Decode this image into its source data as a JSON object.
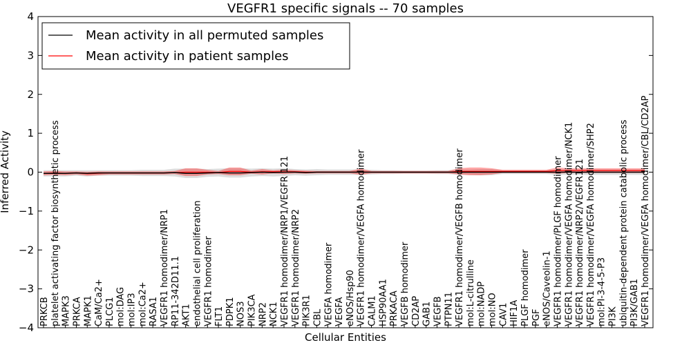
{
  "chart_data": {
    "type": "line",
    "title": "VEGFR1 specific signals -- 70 samples",
    "xlabel": "Cellular Entities",
    "ylabel": "Inferred Activity",
    "ylim": [
      -4,
      4
    ],
    "yticks": [
      -4,
      -3,
      -2,
      -1,
      0,
      1,
      2,
      3,
      4
    ],
    "legend_position": "top-left",
    "categories": [
      "PRKCB",
      "platelet activating factor biosynthetic process",
      "MAPK3",
      "PRKCA",
      "MAPK1",
      "CaM/Ca2+",
      "PLCG1",
      "mol:DAG",
      "mol:IP3",
      "mol:Ca2+",
      "RASA1",
      "VEGFR1 homodimer/NRP1",
      "RP11-342D11.1",
      "AKT1",
      "endothelial cell proliferation",
      "VEGFR1 homodimer",
      "FLT1",
      "PDPK1",
      "NOS3",
      "PIK3CA",
      "NRP2",
      "NCK1",
      "VEGFR1 homodimer/NRP1/VEGFR 121",
      "VEGFR1 homodimer/NRP2",
      "PIK3R1",
      "CBL",
      "VEGFA homodimer",
      "VEGFA",
      "eNOS/Hsp90",
      "VEGFR1 homodimer/VEGFA homodimer",
      "CALM1",
      "HSP90AA1",
      "PRKACA",
      "VEGFB homodimer",
      "CD2AP",
      "GAB1",
      "VEGFB",
      "PTPN11",
      "VEGFR1 homodimer/VEGFB homodimer",
      "mol:L-citrulline",
      "mol:NADP",
      "mol:NO",
      "CAV1",
      "HIF1A",
      "PLGF homodimer",
      "PGF",
      "eNOS/Caveolin-1",
      "VEGFR1 homodimer/PLGF homodimer",
      "VEGFR1 homodimer/VEGFA homodimer/NCK1",
      "VEGFR1 homodimer/NRP2/VEGFR121",
      "VEGFR1 homodimer/VEGFA homodimer/SHP2",
      "mol:PI-3-4-5-P3",
      "PI3K",
      "ubiquitin-dependent protein catabolic process",
      "PI3K/GAB1",
      "VEGFR1 homodimer/VEGFA homodimer/CBL/CD2AP"
    ],
    "series": [
      {
        "name": "Mean activity in all permuted samples",
        "color": "#000000",
        "values": [
          -0.03,
          -0.03,
          -0.03,
          -0.02,
          -0.03,
          -0.02,
          -0.02,
          -0.02,
          -0.02,
          -0.02,
          -0.02,
          -0.02,
          -0.01,
          -0.03,
          -0.03,
          -0.02,
          -0.01,
          -0.02,
          -0.02,
          -0.01,
          0.0,
          -0.01,
          0.0,
          0.0,
          -0.01,
          0.0,
          0.0,
          0.0,
          0.0,
          0.0,
          0.0,
          0.0,
          0.0,
          0.0,
          0.0,
          0.0,
          0.0,
          0.0,
          0.0,
          0.0,
          0.0,
          0.0,
          0.0,
          0.0,
          0.0,
          0.0,
          0.0,
          0.0,
          0.0,
          0.0,
          0.0,
          0.0,
          0.0,
          0.0,
          0.0,
          0.0
        ],
        "band": [
          0.08,
          0.08,
          0.08,
          0.07,
          0.08,
          0.07,
          0.07,
          0.07,
          0.07,
          0.08,
          0.08,
          0.08,
          0.1,
          0.12,
          0.12,
          0.1,
          0.1,
          0.12,
          0.12,
          0.1,
          0.1,
          0.1,
          0.1,
          0.08,
          0.08,
          0.08,
          0.07,
          0.07,
          0.07,
          0.07,
          0.06,
          0.05,
          0.05,
          0.04,
          0.04,
          0.04,
          0.05,
          0.05,
          0.07,
          0.07,
          0.08,
          0.08,
          0.05,
          0.05,
          0.05,
          0.05,
          0.05,
          0.07,
          0.07,
          0.07,
          0.07,
          0.07,
          0.07,
          0.07,
          0.07,
          0.07
        ]
      },
      {
        "name": "Mean activity in patient samples",
        "color": "#ff0000",
        "values": [
          -0.03,
          -0.02,
          -0.03,
          -0.02,
          -0.04,
          -0.03,
          -0.02,
          -0.02,
          -0.02,
          -0.02,
          -0.02,
          -0.02,
          -0.01,
          0.0,
          0.0,
          0.0,
          -0.01,
          0.02,
          0.02,
          0.0,
          0.01,
          0.01,
          0.01,
          0.01,
          0.0,
          0.0,
          0.0,
          0.0,
          0.0,
          0.01,
          0.0,
          0.0,
          0.0,
          0.0,
          0.0,
          0.0,
          0.0,
          0.0,
          0.02,
          0.02,
          0.02,
          0.02,
          0.02,
          0.02,
          0.02,
          0.02,
          0.02,
          0.04,
          0.04,
          0.04,
          0.04,
          0.04,
          0.04,
          0.04,
          0.04,
          0.04
        ],
        "band": [
          0.05,
          0.05,
          0.05,
          0.04,
          0.05,
          0.05,
          0.04,
          0.04,
          0.04,
          0.04,
          0.04,
          0.04,
          0.04,
          0.1,
          0.1,
          0.06,
          0.04,
          0.1,
          0.1,
          0.04,
          0.07,
          0.04,
          0.06,
          0.04,
          0.04,
          0.03,
          0.03,
          0.03,
          0.03,
          0.08,
          0.03,
          0.03,
          0.03,
          0.03,
          0.03,
          0.03,
          0.03,
          0.03,
          0.08,
          0.1,
          0.1,
          0.08,
          0.04,
          0.04,
          0.04,
          0.04,
          0.04,
          0.08,
          0.06,
          0.06,
          0.06,
          0.06,
          0.06,
          0.06,
          0.06,
          0.06
        ]
      }
    ]
  }
}
